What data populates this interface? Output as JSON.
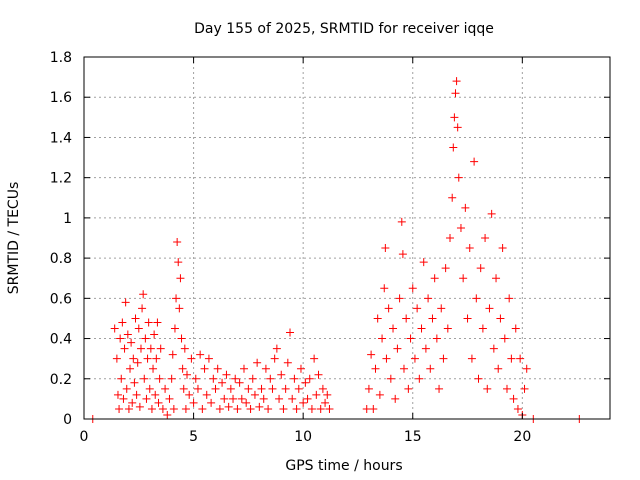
{
  "chart_data": {
    "type": "scatter",
    "title": "Day 155 of 2025, SRMTID for receiver iqqe",
    "xlabel": "GPS time / hours",
    "ylabel": "SRMTID / TECUs",
    "xlim": [
      0,
      24
    ],
    "ylim": [
      0,
      1.8
    ],
    "xticks": [
      0,
      5,
      10,
      15,
      20
    ],
    "yticks": [
      0,
      0.2,
      0.4,
      0.6,
      0.8,
      1,
      1.2,
      1.4,
      1.6,
      1.8
    ],
    "ytick_labels": [
      "0",
      "0.2",
      "0.4",
      "0.6",
      "0.8",
      "1",
      "1.2",
      "1.4",
      "1.6",
      "1.8"
    ],
    "grid": true,
    "marker": "+",
    "series": [
      {
        "name": "SRMTID",
        "color": "#ff0000",
        "points": [
          [
            0.4,
            0.0
          ],
          [
            1.4,
            0.45
          ],
          [
            1.5,
            0.3
          ],
          [
            1.55,
            0.12
          ],
          [
            1.6,
            0.05
          ],
          [
            1.65,
            0.4
          ],
          [
            1.7,
            0.2
          ],
          [
            1.75,
            0.48
          ],
          [
            1.8,
            0.1
          ],
          [
            1.85,
            0.35
          ],
          [
            1.9,
            0.58
          ],
          [
            1.95,
            0.15
          ],
          [
            2.0,
            0.42
          ],
          [
            2.05,
            0.05
          ],
          [
            2.1,
            0.25
          ],
          [
            2.15,
            0.38
          ],
          [
            2.2,
            0.08
          ],
          [
            2.25,
            0.3
          ],
          [
            2.3,
            0.18
          ],
          [
            2.35,
            0.5
          ],
          [
            2.4,
            0.12
          ],
          [
            2.45,
            0.28
          ],
          [
            2.5,
            0.45
          ],
          [
            2.55,
            0.06
          ],
          [
            2.6,
            0.35
          ],
          [
            2.65,
            0.55
          ],
          [
            2.7,
            0.62
          ],
          [
            2.75,
            0.2
          ],
          [
            2.8,
            0.4
          ],
          [
            2.85,
            0.1
          ],
          [
            2.9,
            0.3
          ],
          [
            2.95,
            0.48
          ],
          [
            3.0,
            0.15
          ],
          [
            3.05,
            0.35
          ],
          [
            3.1,
            0.05
          ],
          [
            3.15,
            0.25
          ],
          [
            3.2,
            0.42
          ],
          [
            3.25,
            0.12
          ],
          [
            3.3,
            0.3
          ],
          [
            3.35,
            0.48
          ],
          [
            3.4,
            0.08
          ],
          [
            3.45,
            0.2
          ],
          [
            3.5,
            0.35
          ],
          [
            3.6,
            0.05
          ],
          [
            3.7,
            0.15
          ],
          [
            3.8,
            0.02
          ],
          [
            3.9,
            0.1
          ],
          [
            4.0,
            0.2
          ],
          [
            4.05,
            0.32
          ],
          [
            4.1,
            0.05
          ],
          [
            4.15,
            0.45
          ],
          [
            4.2,
            0.6
          ],
          [
            4.25,
            0.88
          ],
          [
            4.3,
            0.78
          ],
          [
            4.35,
            0.55
          ],
          [
            4.4,
            0.7
          ],
          [
            4.45,
            0.4
          ],
          [
            4.5,
            0.25
          ],
          [
            4.55,
            0.15
          ],
          [
            4.6,
            0.35
          ],
          [
            4.65,
            0.05
          ],
          [
            4.7,
            0.22
          ],
          [
            4.8,
            0.12
          ],
          [
            4.9,
            0.3
          ],
          [
            5.0,
            0.08
          ],
          [
            5.1,
            0.2
          ],
          [
            5.2,
            0.15
          ],
          [
            5.3,
            0.32
          ],
          [
            5.4,
            0.05
          ],
          [
            5.5,
            0.25
          ],
          [
            5.6,
            0.12
          ],
          [
            5.7,
            0.3
          ],
          [
            5.8,
            0.08
          ],
          [
            5.9,
            0.2
          ],
          [
            6.0,
            0.15
          ],
          [
            6.1,
            0.25
          ],
          [
            6.2,
            0.05
          ],
          [
            6.3,
            0.18
          ],
          [
            6.4,
            0.1
          ],
          [
            6.5,
            0.22
          ],
          [
            6.6,
            0.06
          ],
          [
            6.7,
            0.15
          ],
          [
            6.8,
            0.1
          ],
          [
            6.9,
            0.2
          ],
          [
            7.0,
            0.05
          ],
          [
            7.1,
            0.18
          ],
          [
            7.2,
            0.1
          ],
          [
            7.3,
            0.25
          ],
          [
            7.4,
            0.08
          ],
          [
            7.5,
            0.15
          ],
          [
            7.6,
            0.05
          ],
          [
            7.7,
            0.2
          ],
          [
            7.8,
            0.12
          ],
          [
            7.9,
            0.28
          ],
          [
            8.0,
            0.06
          ],
          [
            8.1,
            0.15
          ],
          [
            8.2,
            0.1
          ],
          [
            8.3,
            0.25
          ],
          [
            8.4,
            0.05
          ],
          [
            8.5,
            0.2
          ],
          [
            8.6,
            0.15
          ],
          [
            8.7,
            0.3
          ],
          [
            8.8,
            0.35
          ],
          [
            8.9,
            0.1
          ],
          [
            9.0,
            0.22
          ],
          [
            9.1,
            0.05
          ],
          [
            9.2,
            0.15
          ],
          [
            9.3,
            0.28
          ],
          [
            9.4,
            0.43
          ],
          [
            9.5,
            0.1
          ],
          [
            9.6,
            0.2
          ],
          [
            9.7,
            0.05
          ],
          [
            9.8,
            0.15
          ],
          [
            9.9,
            0.25
          ],
          [
            10.0,
            0.08
          ],
          [
            10.1,
            0.18
          ],
          [
            10.2,
            0.1
          ],
          [
            10.3,
            0.2
          ],
          [
            10.4,
            0.05
          ],
          [
            10.5,
            0.3
          ],
          [
            10.6,
            0.12
          ],
          [
            10.7,
            0.22
          ],
          [
            10.8,
            0.05
          ],
          [
            10.9,
            0.15
          ],
          [
            11.0,
            0.08
          ],
          [
            11.1,
            0.12
          ],
          [
            11.2,
            0.05
          ],
          [
            12.9,
            0.05
          ],
          [
            13.0,
            0.15
          ],
          [
            13.1,
            0.32
          ],
          [
            13.2,
            0.05
          ],
          [
            13.3,
            0.25
          ],
          [
            13.4,
            0.5
          ],
          [
            13.5,
            0.12
          ],
          [
            13.6,
            0.4
          ],
          [
            13.7,
            0.65
          ],
          [
            13.75,
            0.85
          ],
          [
            13.8,
            0.3
          ],
          [
            13.9,
            0.55
          ],
          [
            14.0,
            0.2
          ],
          [
            14.1,
            0.45
          ],
          [
            14.2,
            0.1
          ],
          [
            14.3,
            0.35
          ],
          [
            14.4,
            0.6
          ],
          [
            14.5,
            0.98
          ],
          [
            14.55,
            0.82
          ],
          [
            14.6,
            0.25
          ],
          [
            14.7,
            0.5
          ],
          [
            14.8,
            0.15
          ],
          [
            14.9,
            0.4
          ],
          [
            15.0,
            0.65
          ],
          [
            15.1,
            0.3
          ],
          [
            15.2,
            0.55
          ],
          [
            15.3,
            0.2
          ],
          [
            15.4,
            0.45
          ],
          [
            15.5,
            0.78
          ],
          [
            15.6,
            0.35
          ],
          [
            15.7,
            0.6
          ],
          [
            15.8,
            0.25
          ],
          [
            15.9,
            0.5
          ],
          [
            16.0,
            0.7
          ],
          [
            16.1,
            0.4
          ],
          [
            16.2,
            0.15
          ],
          [
            16.3,
            0.55
          ],
          [
            16.4,
            0.3
          ],
          [
            16.5,
            0.75
          ],
          [
            16.6,
            0.45
          ],
          [
            16.7,
            0.9
          ],
          [
            16.8,
            1.1
          ],
          [
            16.85,
            1.35
          ],
          [
            16.9,
            1.5
          ],
          [
            16.95,
            1.62
          ],
          [
            17.0,
            1.68
          ],
          [
            17.05,
            1.45
          ],
          [
            17.1,
            1.2
          ],
          [
            17.2,
            0.95
          ],
          [
            17.3,
            0.7
          ],
          [
            17.4,
            1.05
          ],
          [
            17.5,
            0.5
          ],
          [
            17.6,
            0.85
          ],
          [
            17.7,
            0.3
          ],
          [
            17.8,
            1.28
          ],
          [
            17.9,
            0.6
          ],
          [
            18.0,
            0.2
          ],
          [
            18.1,
            0.75
          ],
          [
            18.2,
            0.45
          ],
          [
            18.3,
            0.9
          ],
          [
            18.4,
            0.15
          ],
          [
            18.5,
            0.55
          ],
          [
            18.6,
            1.02
          ],
          [
            18.7,
            0.35
          ],
          [
            18.8,
            0.7
          ],
          [
            18.9,
            0.25
          ],
          [
            19.0,
            0.5
          ],
          [
            19.1,
            0.85
          ],
          [
            19.2,
            0.4
          ],
          [
            19.3,
            0.15
          ],
          [
            19.4,
            0.6
          ],
          [
            19.5,
            0.3
          ],
          [
            19.6,
            0.1
          ],
          [
            19.7,
            0.45
          ],
          [
            19.8,
            0.05
          ],
          [
            19.9,
            0.3
          ],
          [
            20.0,
            0.02
          ],
          [
            20.1,
            0.15
          ],
          [
            20.2,
            0.25
          ],
          [
            20.5,
            0.0
          ],
          [
            22.6,
            0.0
          ]
        ]
      }
    ]
  }
}
